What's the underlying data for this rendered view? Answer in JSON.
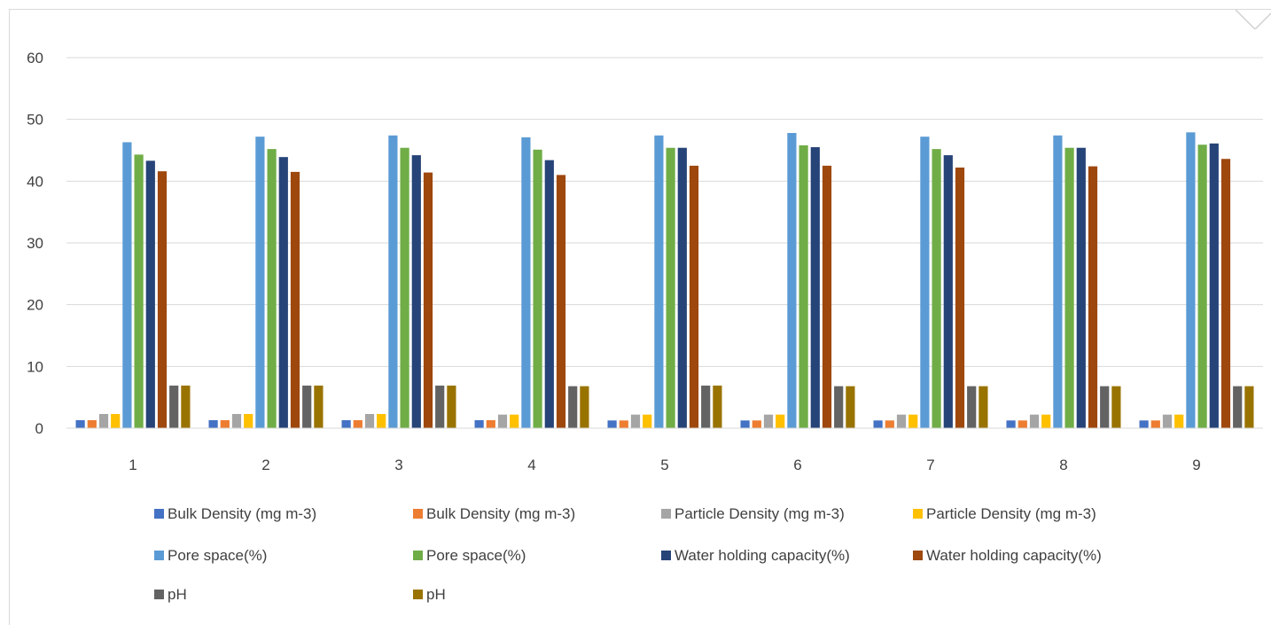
{
  "chart_data": {
    "type": "bar",
    "categories": [
      "1",
      "2",
      "3",
      "4",
      "5",
      "6",
      "7",
      "8",
      "9"
    ],
    "ylim": [
      0,
      60
    ],
    "yticks": [
      "0",
      "10",
      "20",
      "30",
      "40",
      "50",
      "60"
    ],
    "grid": true,
    "legend_position": "bottom",
    "series": [
      {
        "name": "Bulk Density (mg m-3)",
        "color": "#4472C4",
        "values": [
          1.3,
          1.3,
          1.3,
          1.3,
          1.25,
          1.25,
          1.25,
          1.25,
          1.25
        ]
      },
      {
        "name": "Bulk Density (mg m-3)",
        "color": "#ED7D31",
        "values": [
          1.3,
          1.3,
          1.3,
          1.3,
          1.25,
          1.25,
          1.25,
          1.25,
          1.25
        ]
      },
      {
        "name": "Particle Density (mg m-3)",
        "color": "#A5A5A5",
        "values": [
          2.3,
          2.3,
          2.3,
          2.2,
          2.2,
          2.2,
          2.2,
          2.2,
          2.2
        ]
      },
      {
        "name": "Particle Density (mg m-3)",
        "color": "#FFC000",
        "values": [
          2.3,
          2.3,
          2.3,
          2.2,
          2.2,
          2.2,
          2.2,
          2.2,
          2.2
        ]
      },
      {
        "name": "Pore space(%)",
        "color": "#5B9BD5",
        "values": [
          46.3,
          47.2,
          47.4,
          47.1,
          47.4,
          47.8,
          47.2,
          47.4,
          47.9
        ]
      },
      {
        "name": "Pore space(%)",
        "color": "#70AD47",
        "values": [
          44.3,
          45.2,
          45.4,
          45.1,
          45.4,
          45.8,
          45.2,
          45.4,
          45.9
        ]
      },
      {
        "name": "Water holding capacity(%)",
        "color": "#264478",
        "values": [
          43.3,
          43.9,
          44.2,
          43.4,
          45.4,
          45.5,
          44.2,
          45.4,
          46.1
        ]
      },
      {
        "name": "Water holding capacity(%)",
        "color": "#9E480E",
        "values": [
          41.6,
          41.5,
          41.4,
          41.0,
          42.5,
          42.5,
          42.2,
          42.4,
          43.6
        ]
      },
      {
        "name": "pH",
        "color": "#636363",
        "values": [
          6.9,
          6.9,
          6.9,
          6.8,
          6.9,
          6.8,
          6.8,
          6.8,
          6.8
        ]
      },
      {
        "name": "pH",
        "color": "#997300",
        "values": [
          6.9,
          6.9,
          6.9,
          6.8,
          6.9,
          6.8,
          6.8,
          6.8,
          6.8
        ]
      }
    ]
  }
}
